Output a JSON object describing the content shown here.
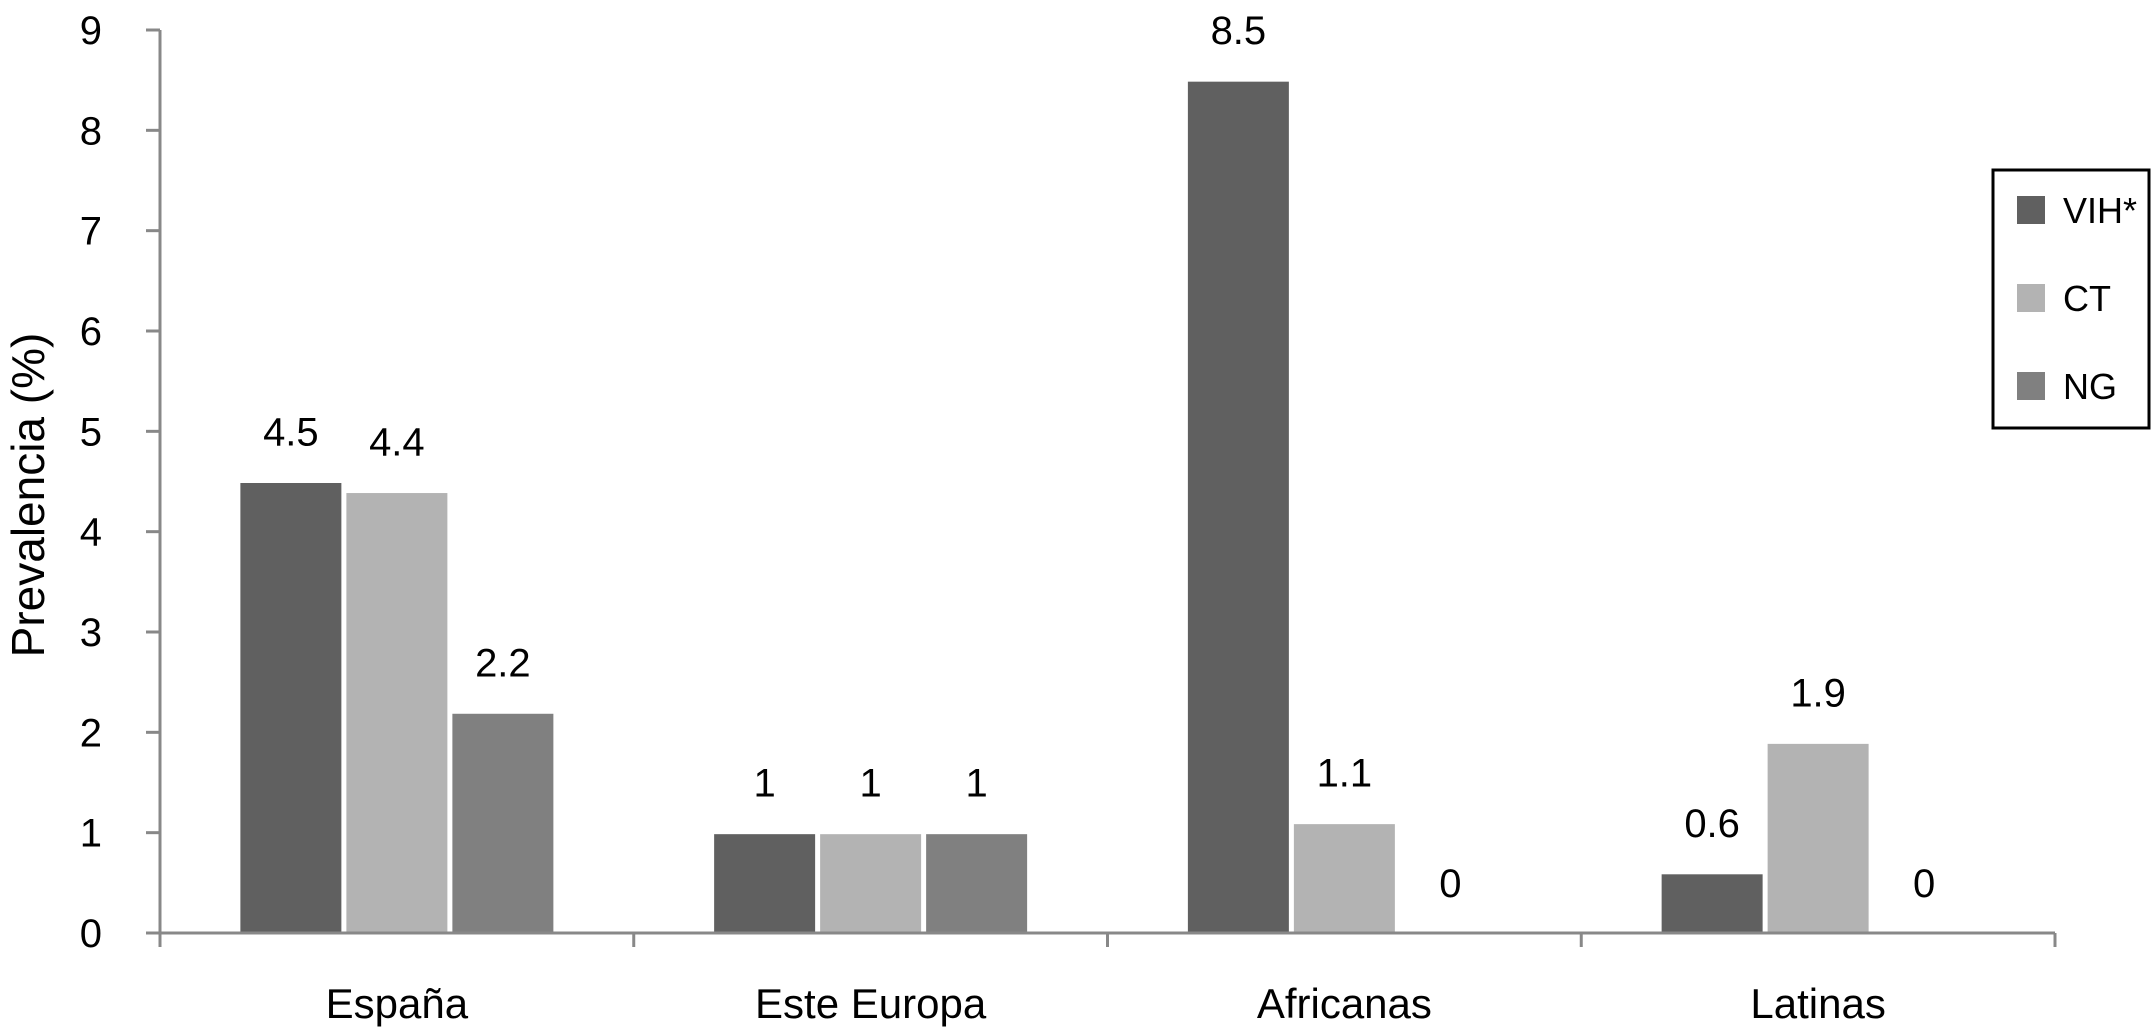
{
  "chart_data": {
    "type": "bar",
    "title": "",
    "xlabel": "",
    "ylabel": "Prevalencia (%)",
    "ylim": [
      0,
      9
    ],
    "yticks": [
      0,
      1,
      2,
      3,
      4,
      5,
      6,
      7,
      8,
      9
    ],
    "grid": false,
    "legend_position": "right",
    "categories": [
      "España",
      "Este Europa",
      "Africanas",
      "Latinas"
    ],
    "series": [
      {
        "name": "VIH*",
        "color": "#606060",
        "values": [
          4.5,
          1,
          8.5,
          0.6
        ]
      },
      {
        "name": "CT",
        "color": "#b3b3b3",
        "values": [
          4.4,
          1,
          1.1,
          1.9
        ]
      },
      {
        "name": "NG",
        "color": "#808080",
        "values": [
          2.2,
          1,
          0,
          0
        ]
      }
    ],
    "data_labels": [
      [
        "4.5",
        "4.4",
        "2.2"
      ],
      [
        "1",
        "1",
        "1"
      ],
      [
        "8.5",
        "1.1",
        "0"
      ],
      [
        "0.6",
        "1.9",
        "0"
      ]
    ]
  }
}
